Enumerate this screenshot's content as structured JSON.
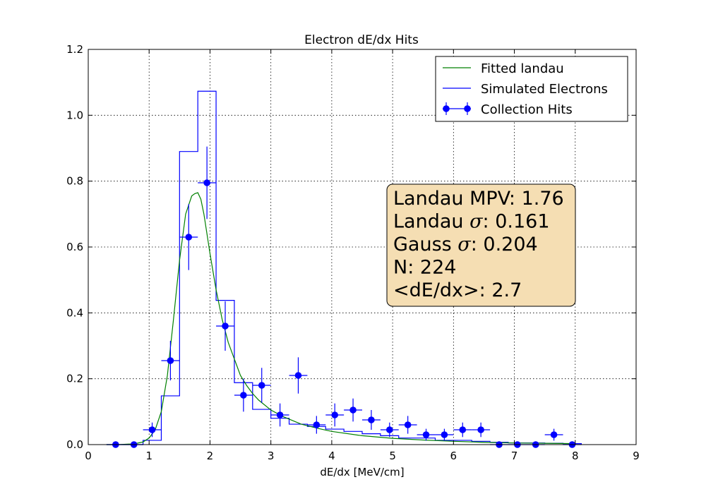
{
  "chart_data": {
    "type": "line",
    "title": "Electron dE/dx Hits",
    "xlabel": "dE/dx [MeV/cm]",
    "ylabel": "",
    "xlim": [
      0,
      9
    ],
    "ylim": [
      0,
      1.2
    ],
    "x_ticks": [
      "0",
      "1",
      "2",
      "3",
      "4",
      "5",
      "6",
      "7",
      "8",
      "9"
    ],
    "y_ticks": [
      "0.0",
      "0.2",
      "0.4",
      "0.6",
      "0.8",
      "1.0",
      "1.2"
    ],
    "grid": true,
    "legend_position": "top-right",
    "legend": [
      "Fitted landau",
      "Simulated Electrons",
      "Collection Hits"
    ],
    "colors": {
      "fit": "#008000",
      "simulated": "#0000ff",
      "hits": "#0000ff",
      "stats_box": "#f5deb3"
    },
    "stats_box": {
      "lines": [
        {
          "label": "Landau MPV: ",
          "sigma": false,
          "value": "1.76"
        },
        {
          "label": "Landau ",
          "sigma": true,
          "value": "0.161"
        },
        {
          "label": "Gauss ",
          "sigma": true,
          "value": "0.204"
        },
        {
          "label": "N: ",
          "sigma": false,
          "value": "224"
        },
        {
          "label": "<dE/dx>: ",
          "sigma": false,
          "value": "2.7"
        }
      ]
    },
    "series": [
      {
        "name": "Fitted landau",
        "type": "line",
        "x": [
          0.3,
          0.5,
          0.7,
          0.8,
          0.9,
          1.0,
          1.1,
          1.2,
          1.3,
          1.4,
          1.5,
          1.6,
          1.7,
          1.75,
          1.8,
          1.85,
          1.9,
          1.95,
          2.0,
          2.1,
          2.2,
          2.3,
          2.4,
          2.5,
          2.6,
          2.7,
          2.8,
          3.0,
          3.2,
          3.5,
          3.8,
          4.0,
          4.5,
          5.0,
          5.5,
          6.0,
          6.5,
          7.0,
          7.5,
          8.0
        ],
        "y": [
          0.0,
          0.0,
          0.002,
          0.004,
          0.008,
          0.02,
          0.045,
          0.1,
          0.21,
          0.38,
          0.56,
          0.7,
          0.755,
          0.762,
          0.765,
          0.745,
          0.7,
          0.64,
          0.58,
          0.47,
          0.38,
          0.31,
          0.26,
          0.21,
          0.18,
          0.155,
          0.135,
          0.105,
          0.085,
          0.062,
          0.048,
          0.04,
          0.027,
          0.019,
          0.014,
          0.01,
          0.007,
          0.005,
          0.004,
          0.003
        ]
      },
      {
        "name": "Simulated Electrons",
        "type": "step",
        "edges": [
          0.3,
          0.6,
          0.9,
          1.2,
          1.5,
          1.8,
          2.1,
          2.4,
          2.7,
          3.0,
          3.3,
          3.6,
          3.9,
          4.2,
          4.5,
          4.8,
          5.1,
          5.4,
          5.7,
          6.0,
          6.3,
          6.6,
          6.9,
          7.2,
          7.5,
          7.8,
          8.1
        ],
        "values": [
          0.0,
          0.0,
          0.013,
          0.148,
          0.89,
          1.073,
          0.438,
          0.188,
          0.107,
          0.08,
          0.062,
          0.055,
          0.047,
          0.04,
          0.033,
          0.027,
          0.02,
          0.02,
          0.013,
          0.013,
          0.01,
          0.007,
          0.005,
          0.005,
          0.004,
          0.003
        ]
      },
      {
        "name": "Collection Hits",
        "type": "errorbar",
        "points": [
          {
            "x": 0.45,
            "y": 0.0,
            "yerr": 0.0
          },
          {
            "x": 0.75,
            "y": 0.0,
            "yerr": 0.0
          },
          {
            "x": 1.05,
            "y": 0.045,
            "yerr": 0.022
          },
          {
            "x": 1.35,
            "y": 0.255,
            "yerr": 0.06
          },
          {
            "x": 1.65,
            "y": 0.63,
            "yerr": 0.1
          },
          {
            "x": 1.95,
            "y": 0.795,
            "yerr": 0.11
          },
          {
            "x": 2.25,
            "y": 0.36,
            "yerr": 0.075
          },
          {
            "x": 2.55,
            "y": 0.15,
            "yerr": 0.05
          },
          {
            "x": 2.85,
            "y": 0.18,
            "yerr": 0.053
          },
          {
            "x": 3.15,
            "y": 0.09,
            "yerr": 0.035
          },
          {
            "x": 3.45,
            "y": 0.21,
            "yerr": 0.055
          },
          {
            "x": 3.75,
            "y": 0.06,
            "yerr": 0.027
          },
          {
            "x": 4.05,
            "y": 0.09,
            "yerr": 0.035
          },
          {
            "x": 4.35,
            "y": 0.105,
            "yerr": 0.035
          },
          {
            "x": 4.65,
            "y": 0.075,
            "yerr": 0.03
          },
          {
            "x": 4.95,
            "y": 0.045,
            "yerr": 0.022
          },
          {
            "x": 5.25,
            "y": 0.06,
            "yerr": 0.027
          },
          {
            "x": 5.55,
            "y": 0.03,
            "yerr": 0.018
          },
          {
            "x": 5.85,
            "y": 0.03,
            "yerr": 0.018
          },
          {
            "x": 6.15,
            "y": 0.045,
            "yerr": 0.022
          },
          {
            "x": 6.45,
            "y": 0.045,
            "yerr": 0.022
          },
          {
            "x": 6.75,
            "y": 0.0,
            "yerr": 0.0
          },
          {
            "x": 7.05,
            "y": 0.0,
            "yerr": 0.0
          },
          {
            "x": 7.35,
            "y": 0.0,
            "yerr": 0.0
          },
          {
            "x": 7.65,
            "y": 0.03,
            "yerr": 0.018
          },
          {
            "x": 7.95,
            "y": 0.0,
            "yerr": 0.0
          }
        ]
      }
    ]
  }
}
